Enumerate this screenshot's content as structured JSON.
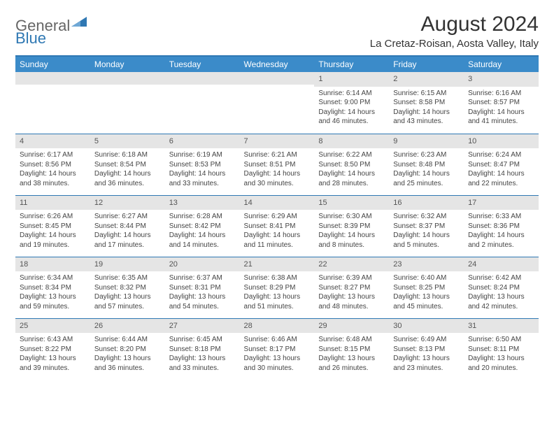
{
  "logo": {
    "text1": "General",
    "text2": "Blue"
  },
  "title": "August 2024",
  "location": "La Cretaz-Roisan, Aosta Valley, Italy",
  "colors": {
    "header_bg": "#3b8bc9",
    "header_border": "#2f78b3",
    "daynum_bg": "#e5e5e5",
    "text": "#444444"
  },
  "day_names": [
    "Sunday",
    "Monday",
    "Tuesday",
    "Wednesday",
    "Thursday",
    "Friday",
    "Saturday"
  ],
  "weeks": [
    [
      null,
      null,
      null,
      null,
      {
        "n": "1",
        "sr": "6:14 AM",
        "ss": "9:00 PM",
        "dl": "14 hours and 46 minutes."
      },
      {
        "n": "2",
        "sr": "6:15 AM",
        "ss": "8:58 PM",
        "dl": "14 hours and 43 minutes."
      },
      {
        "n": "3",
        "sr": "6:16 AM",
        "ss": "8:57 PM",
        "dl": "14 hours and 41 minutes."
      }
    ],
    [
      {
        "n": "4",
        "sr": "6:17 AM",
        "ss": "8:56 PM",
        "dl": "14 hours and 38 minutes."
      },
      {
        "n": "5",
        "sr": "6:18 AM",
        "ss": "8:54 PM",
        "dl": "14 hours and 36 minutes."
      },
      {
        "n": "6",
        "sr": "6:19 AM",
        "ss": "8:53 PM",
        "dl": "14 hours and 33 minutes."
      },
      {
        "n": "7",
        "sr": "6:21 AM",
        "ss": "8:51 PM",
        "dl": "14 hours and 30 minutes."
      },
      {
        "n": "8",
        "sr": "6:22 AM",
        "ss": "8:50 PM",
        "dl": "14 hours and 28 minutes."
      },
      {
        "n": "9",
        "sr": "6:23 AM",
        "ss": "8:48 PM",
        "dl": "14 hours and 25 minutes."
      },
      {
        "n": "10",
        "sr": "6:24 AM",
        "ss": "8:47 PM",
        "dl": "14 hours and 22 minutes."
      }
    ],
    [
      {
        "n": "11",
        "sr": "6:26 AM",
        "ss": "8:45 PM",
        "dl": "14 hours and 19 minutes."
      },
      {
        "n": "12",
        "sr": "6:27 AM",
        "ss": "8:44 PM",
        "dl": "14 hours and 17 minutes."
      },
      {
        "n": "13",
        "sr": "6:28 AM",
        "ss": "8:42 PM",
        "dl": "14 hours and 14 minutes."
      },
      {
        "n": "14",
        "sr": "6:29 AM",
        "ss": "8:41 PM",
        "dl": "14 hours and 11 minutes."
      },
      {
        "n": "15",
        "sr": "6:30 AM",
        "ss": "8:39 PM",
        "dl": "14 hours and 8 minutes."
      },
      {
        "n": "16",
        "sr": "6:32 AM",
        "ss": "8:37 PM",
        "dl": "14 hours and 5 minutes."
      },
      {
        "n": "17",
        "sr": "6:33 AM",
        "ss": "8:36 PM",
        "dl": "14 hours and 2 minutes."
      }
    ],
    [
      {
        "n": "18",
        "sr": "6:34 AM",
        "ss": "8:34 PM",
        "dl": "13 hours and 59 minutes."
      },
      {
        "n": "19",
        "sr": "6:35 AM",
        "ss": "8:32 PM",
        "dl": "13 hours and 57 minutes."
      },
      {
        "n": "20",
        "sr": "6:37 AM",
        "ss": "8:31 PM",
        "dl": "13 hours and 54 minutes."
      },
      {
        "n": "21",
        "sr": "6:38 AM",
        "ss": "8:29 PM",
        "dl": "13 hours and 51 minutes."
      },
      {
        "n": "22",
        "sr": "6:39 AM",
        "ss": "8:27 PM",
        "dl": "13 hours and 48 minutes."
      },
      {
        "n": "23",
        "sr": "6:40 AM",
        "ss": "8:25 PM",
        "dl": "13 hours and 45 minutes."
      },
      {
        "n": "24",
        "sr": "6:42 AM",
        "ss": "8:24 PM",
        "dl": "13 hours and 42 minutes."
      }
    ],
    [
      {
        "n": "25",
        "sr": "6:43 AM",
        "ss": "8:22 PM",
        "dl": "13 hours and 39 minutes."
      },
      {
        "n": "26",
        "sr": "6:44 AM",
        "ss": "8:20 PM",
        "dl": "13 hours and 36 minutes."
      },
      {
        "n": "27",
        "sr": "6:45 AM",
        "ss": "8:18 PM",
        "dl": "13 hours and 33 minutes."
      },
      {
        "n": "28",
        "sr": "6:46 AM",
        "ss": "8:17 PM",
        "dl": "13 hours and 30 minutes."
      },
      {
        "n": "29",
        "sr": "6:48 AM",
        "ss": "8:15 PM",
        "dl": "13 hours and 26 minutes."
      },
      {
        "n": "30",
        "sr": "6:49 AM",
        "ss": "8:13 PM",
        "dl": "13 hours and 23 minutes."
      },
      {
        "n": "31",
        "sr": "6:50 AM",
        "ss": "8:11 PM",
        "dl": "13 hours and 20 minutes."
      }
    ]
  ],
  "labels": {
    "sunrise": "Sunrise:",
    "sunset": "Sunset:",
    "daylight": "Daylight:"
  }
}
